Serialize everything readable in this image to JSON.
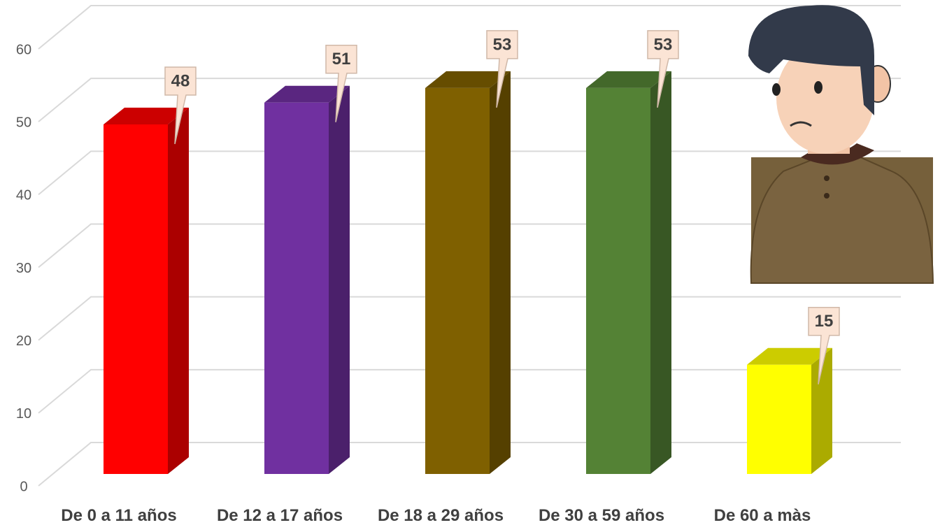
{
  "chart_data": {
    "type": "bar3d",
    "categories": [
      "De 0 a 11 años",
      "De 12 a 17 años",
      "De 18 a 29 años",
      "De 30 a 59 años",
      "De 60 a màs"
    ],
    "values": [
      48,
      51,
      53,
      53,
      15
    ],
    "colors": [
      "#ff0000",
      "#7030a0",
      "#7f6000",
      "#548235",
      "#ffff00"
    ],
    "ylim": [
      0,
      60
    ],
    "yticks": [
      0,
      10,
      20,
      30,
      40,
      50,
      60
    ],
    "grid": true
  }
}
